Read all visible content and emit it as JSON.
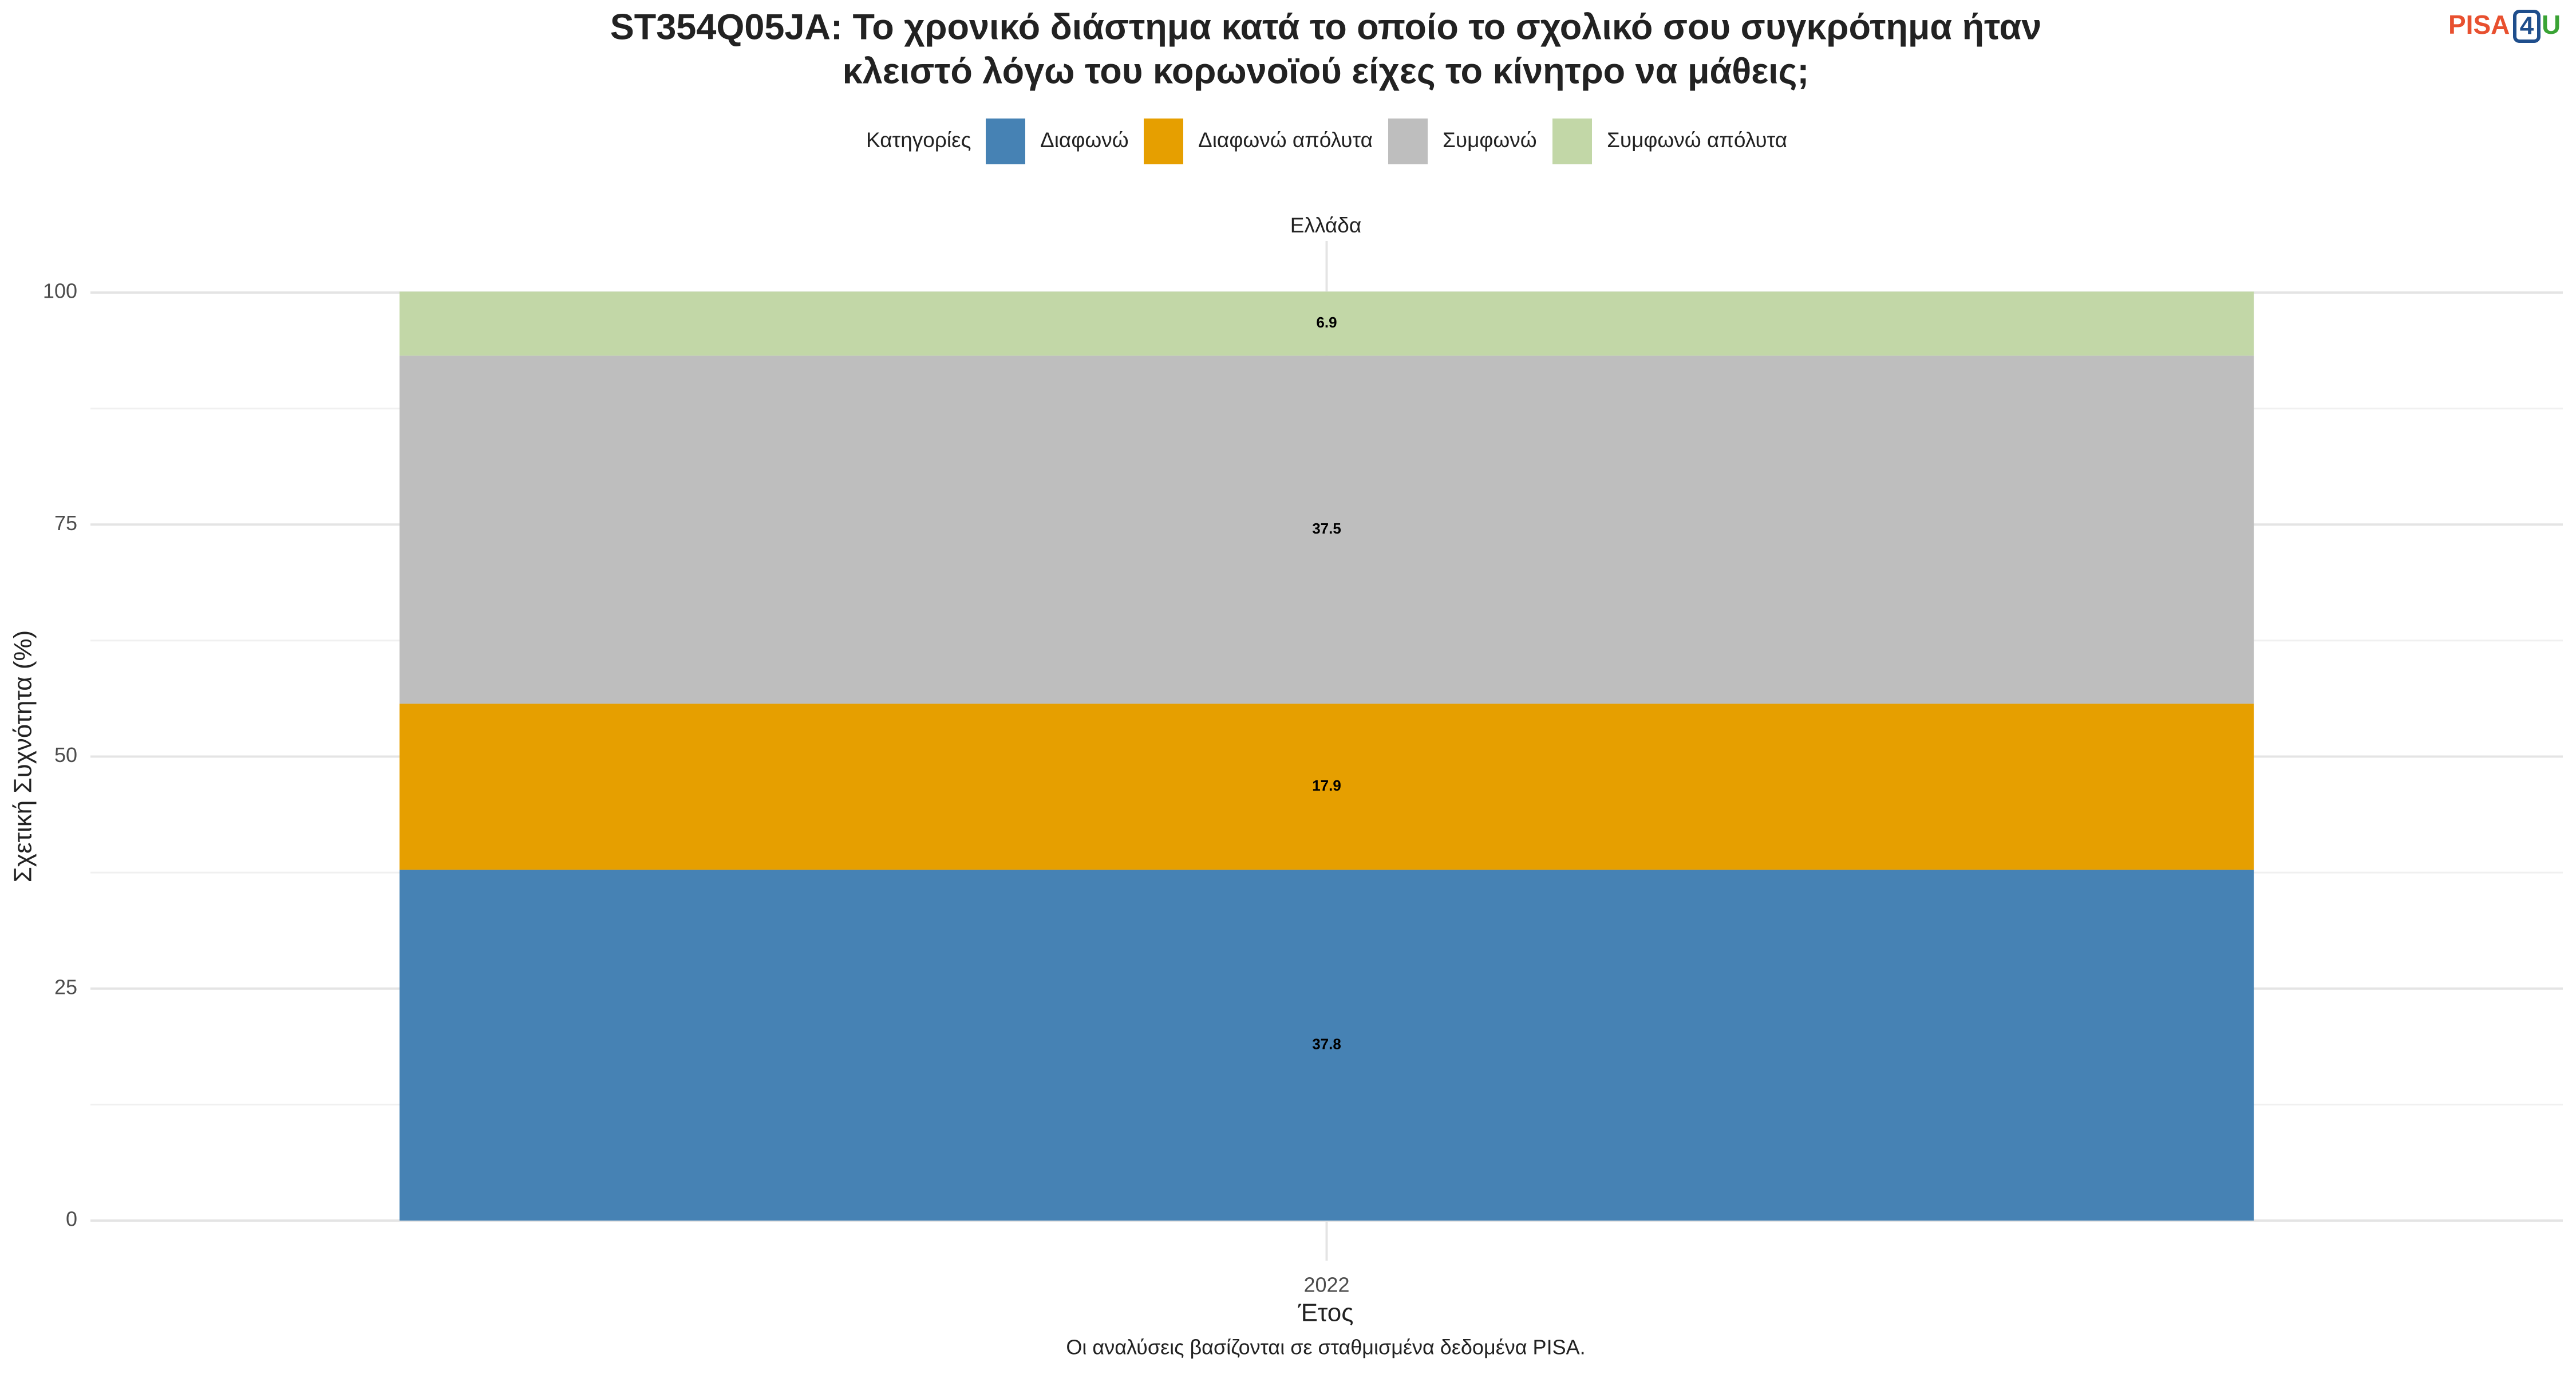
{
  "chart_data": {
    "type": "stacked_bar",
    "title": [
      "ST354Q05JA: Το χρονικό διάστημα κατά το οποίο το σχολικό σου συγκρότημα ήταν",
      "κλειστό λόγω του κορωνοϊού είχες το κίνητρο να μάθεις;"
    ],
    "legend_title": "Κατηγορίες",
    "facet": "Ελλάδα",
    "categories": [
      "2022"
    ],
    "series": [
      {
        "name": "Διαφωνώ",
        "color": "#4682b4",
        "values": [
          37.8
        ]
      },
      {
        "name": "Διαφωνώ απόλυτα",
        "color": "#e69f00",
        "values": [
          17.9
        ]
      },
      {
        "name": "Συμφωνώ",
        "color": "#bebebe",
        "values": [
          37.5
        ]
      },
      {
        "name": "Συμφωνώ απόλυτα",
        "color": "#c2d7a7",
        "values": [
          6.9
        ]
      }
    ],
    "ylim": [
      0,
      100
    ],
    "yticks": [
      0,
      25,
      50,
      75,
      100
    ],
    "grid": true,
    "x_label": "Έτος",
    "y_label": "Σχετική Συχνότητα (%)",
    "caption": "Οι αναλύσεις βασίζονται σε σταθμισμένα δεδομένα PISA.",
    "logo": [
      "PISA",
      "4",
      "U"
    ]
  }
}
